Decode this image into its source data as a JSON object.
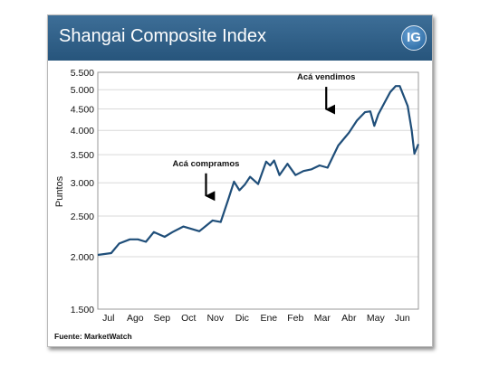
{
  "header": {
    "title": "Shangai Composite Index",
    "logo_text": "IG",
    "background_color": "#2f5f87"
  },
  "source_note": "Fuente: MarketWatch",
  "chart_data": {
    "type": "line",
    "title": "Shangai Composite Index",
    "xlabel": "",
    "ylabel": "Puntos",
    "y_scale": "log",
    "ylim": [
      1500,
      5500
    ],
    "yticks": [
      1500,
      2000,
      2500,
      3000,
      3500,
      4000,
      4500,
      5000,
      5500
    ],
    "ytick_labels": [
      "1.500",
      "2.000",
      "2.500",
      "3.000",
      "3.500",
      "4.000",
      "4.500",
      "5.000",
      "5.500"
    ],
    "xlim": [
      0,
      12
    ],
    "xtick_labels": [
      "Jul",
      "Ago",
      "Sep",
      "Oct",
      "Nov",
      "Dic",
      "Ene",
      "Feb",
      "Mar",
      "Abr",
      "May",
      "Jun"
    ],
    "grid": true,
    "line_color": "#1f4e79",
    "series": [
      {
        "name": "",
        "x": [
          0.0,
          0.5,
          0.8,
          1.2,
          1.5,
          1.8,
          2.1,
          2.5,
          2.8,
          3.2,
          3.5,
          3.8,
          4.3,
          4.6,
          4.9,
          5.1,
          5.3,
          5.5,
          5.7,
          6.0,
          6.3,
          6.45,
          6.6,
          6.8,
          7.1,
          7.4,
          7.7,
          8.0,
          8.3,
          8.6,
          9.0,
          9.4,
          9.7,
          10.0,
          10.2,
          10.35,
          10.5,
          10.75,
          10.95,
          11.15,
          11.3,
          11.6,
          11.75,
          11.85,
          12.0
        ],
        "y": [
          2020,
          2040,
          2150,
          2200,
          2200,
          2170,
          2290,
          2230,
          2290,
          2360,
          2330,
          2300,
          2440,
          2420,
          2760,
          3020,
          2880,
          2970,
          3100,
          2980,
          3370,
          3300,
          3390,
          3130,
          3330,
          3130,
          3200,
          3230,
          3300,
          3260,
          3680,
          3950,
          4220,
          4420,
          4440,
          4100,
          4370,
          4680,
          4940,
          5100,
          5100,
          4570,
          4000,
          3520,
          3710
        ]
      }
    ],
    "annotations": [
      {
        "text": "Acá compramos",
        "x": 4.05,
        "y": 2750
      },
      {
        "text": "Acá vendimos",
        "x": 8.55,
        "y": 4420
      }
    ]
  }
}
